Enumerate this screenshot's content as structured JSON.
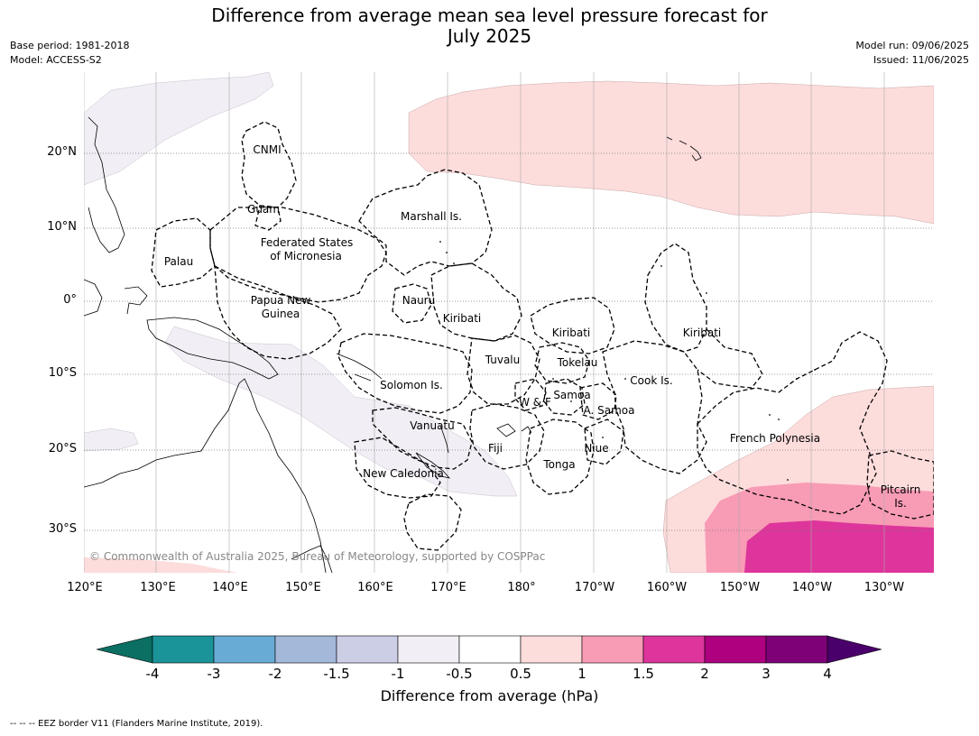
{
  "title_line1": "Difference from average mean sea level pressure forecast for",
  "title_line2": "July 2025",
  "base_period": "Base period: 1981-2018",
  "model": "Model: ACCESS-S2",
  "model_run": "Model run: 09/06/2025",
  "issued": "Issued: 11/06/2025",
  "lat_labels": [
    "20°N",
    "10°N",
    "0°",
    "10°S",
    "20°S",
    "30°S"
  ],
  "lon_labels": [
    "120°E",
    "130°E",
    "140°E",
    "150°E",
    "160°E",
    "170°E",
    "180°",
    "170°W",
    "160°W",
    "150°W",
    "140°W",
    "130°W"
  ],
  "region_labels": {
    "cnmi": "CNMI",
    "guam": "Guam",
    "marshall": "Marshall Is.",
    "palau": "Palau",
    "fsm1": "Federated States",
    "fsm2": "of Micronesia",
    "png1": "Papua New",
    "png2": "Guinea",
    "nauru": "Nauru",
    "kiribati_w": "Kiribati",
    "kiribati_c": "Kiribati",
    "kiribati_e": "Kiribati",
    "tuvalu": "Tuvalu",
    "tokelau": "Tokelau",
    "cook": "Cook Is.",
    "solomon": "Solomon Is.",
    "wf": "W & F",
    "samoa": "Samoa",
    "asamoa": "A. Samoa",
    "vanuatu": "Vanuatu",
    "fiji": "Fiji",
    "niue": "Niue",
    "tonga": "Tonga",
    "fp": "French Polynesia",
    "newcal": "New Caledonia",
    "pitcairn1": "Pitcairn",
    "pitcairn2": "Is."
  },
  "copyright": "© Commonwealth of Australia 2025, Bureau of Meteorology, supported by COSPPac",
  "colorbar": {
    "ticks": [
      "-4",
      "-3",
      "-2",
      "-1.5",
      "-1",
      "-0.5",
      "0.5",
      "1",
      "1.5",
      "2",
      "3",
      "4"
    ],
    "colors": [
      "#0b6f63",
      "#1a9399",
      "#68acd6",
      "#a4b8da",
      "#cccee6",
      "#f2eef5",
      "#ffffff",
      "#fddcdc",
      "#f89bb5",
      "#dd359b",
      "#ad0180",
      "#7e0178",
      "#4a006a"
    ],
    "label": "Difference from average (hPa)"
  },
  "legend_footer": "--  --  -- EEZ border V11 (Flanders Marine Institute, 2019)."
}
